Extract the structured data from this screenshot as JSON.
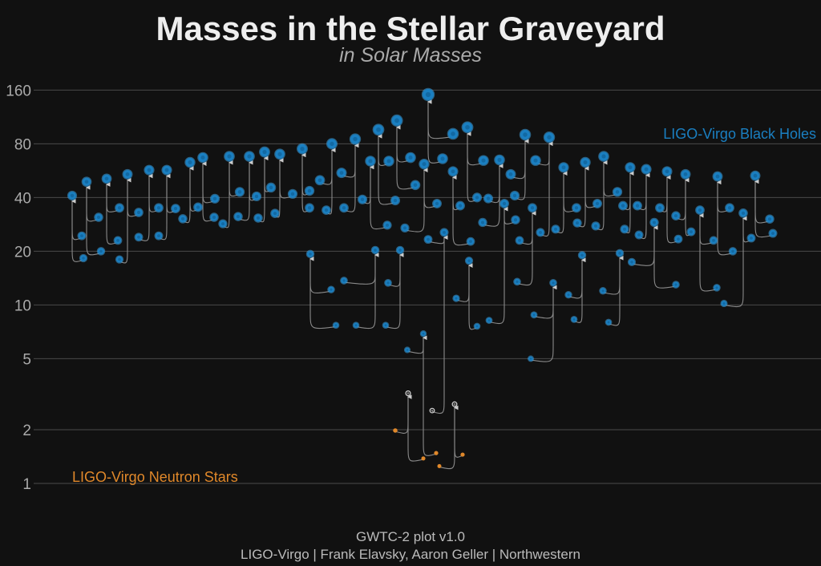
{
  "chart_data": {
    "type": "scatter",
    "title": "Masses in the Stellar Graveyard",
    "subtitle": "in Solar Masses",
    "y_scale": "log",
    "ylim": [
      0.85,
      180
    ],
    "y_ticks": [
      1,
      2,
      5,
      10,
      20,
      40,
      80,
      160
    ],
    "grid": true,
    "legend": [
      {
        "label": "LIGO-Virgo Black Holes",
        "color": "#1a7fc1",
        "placement": "top-right"
      },
      {
        "label": "LIGO-Virgo Neutron Stars",
        "color": "#e0882a",
        "placement": "bottom-left"
      }
    ],
    "colors": {
      "bh": "#1a7fc1",
      "bh_glow": "#3fa3e0",
      "ns": "#e0882a",
      "mg": "#d8d8d8",
      "link": "#8a8a8a",
      "background": "#111111"
    },
    "events": [
      {
        "final": 41,
        "m1": 24.4,
        "m2": 18.3
      },
      {
        "final": 49,
        "m1": 31,
        "m2": 20
      },
      {
        "final": 51,
        "m1": 23,
        "m2": 35
      },
      {
        "final": 54,
        "m1": 18,
        "m2": 33
      },
      {
        "final": 57,
        "m1": 24,
        "m2": 35
      },
      {
        "final": 57,
        "m1": 24.4,
        "m2": 34.7
      },
      {
        "final": 63,
        "m1": 30.4,
        "m2": 35.3
      },
      {
        "final": 67,
        "m1": 39.4,
        "m2": 31
      },
      {
        "final": 68,
        "m1": 28.5,
        "m2": 43
      },
      {
        "final": 68,
        "m1": 31.3,
        "m2": 40.6
      },
      {
        "final": 72,
        "m1": 30.7,
        "m2": 45.5
      },
      {
        "final": 70,
        "m1": 32.6,
        "m2": 41.9
      },
      {
        "final": 75,
        "m1": 43.6,
        "m2": 35
      },
      {
        "final": 19.3,
        "m1": 12.2,
        "m2": 7.7
      },
      {
        "final": 80,
        "m1": 50,
        "m2": 34
      },
      {
        "final": 85,
        "m1": 55,
        "m2": 35
      },
      {
        "final": 64,
        "m1": 39,
        "m2": 28
      },
      {
        "final": 20.3,
        "m1": 13.7,
        "m2": 7.7
      },
      {
        "final": 96,
        "m1": 64,
        "m2": 38.5
      },
      {
        "final": 108,
        "m1": 67,
        "m2": 47
      },
      {
        "final": 20.3,
        "m1": 13.3,
        "m2": 7.7
      },
      {
        "final": 3.2,
        "m1": 1.98,
        "m2": 1.38,
        "final_type": "mg",
        "m1_type": "ns",
        "m2_type": "ns"
      },
      {
        "final": 6.9,
        "m1": 5.6,
        "m2": 1.48,
        "m2_type": "ns"
      },
      {
        "final": 61.6,
        "m1": 27,
        "m2": 37
      },
      {
        "final": 151,
        "m1": 66,
        "m2": 91
      },
      {
        "final": 25.5,
        "m1": 23.3,
        "m2": 2.56,
        "m2_type": "mg"
      },
      {
        "final": 56,
        "m1": 36,
        "m2": 22.7
      },
      {
        "final": 2.78,
        "m1": 1.25,
        "m2": 1.45,
        "final_type": "mg",
        "m1_type": "ns",
        "m2_type": "ns"
      },
      {
        "final": 99,
        "m1": 40,
        "m2": 64.5
      },
      {
        "final": 17.7,
        "m1": 10.9,
        "m2": 7.6
      },
      {
        "final": 65,
        "m1": 39.5,
        "m2": 29
      },
      {
        "final": 37,
        "m1": 8.2,
        "m2": 30
      },
      {
        "final": 90,
        "m1": 54,
        "m2": 41
      },
      {
        "final": 35,
        "m1": 23,
        "m2": 13.5
      },
      {
        "final": 87,
        "m1": 64.5,
        "m2": 25.5
      },
      {
        "final": 13.3,
        "m1": 8.8,
        "m2": 5
      },
      {
        "final": 59,
        "m1": 35,
        "m2": 26.6
      },
      {
        "final": 19,
        "m1": 11.4,
        "m2": 8.3
      },
      {
        "final": 63,
        "m1": 37,
        "m2": 28.8
      },
      {
        "final": 68,
        "m1": 43,
        "m2": 27.7
      },
      {
        "final": 19.5,
        "m1": 12,
        "m2": 8
      },
      {
        "final": 59,
        "m1": 36,
        "m2": 26.6
      },
      {
        "final": 57.6,
        "m1": 36,
        "m2": 24.7
      },
      {
        "final": 29,
        "m1": 17.4,
        "m2": 13
      },
      {
        "final": 56,
        "m1": 35,
        "m2": 23.4
      },
      {
        "final": 54,
        "m1": 31.6,
        "m2": 25.7
      },
      {
        "final": 34,
        "m1": 23,
        "m2": 12.5
      },
      {
        "final": 52.5,
        "m1": 35,
        "m2": 20
      },
      {
        "final": 32.7,
        "m1": 23.7,
        "m2": 10.2
      },
      {
        "final": 53,
        "m1": 30.3,
        "m2": 25.2
      }
    ]
  },
  "labels": {
    "black_holes": "LIGO-Virgo Black Holes",
    "neutron_stars": "LIGO-Virgo Neutron Stars"
  },
  "footer": {
    "line1": "GWTC-2 plot v1.0",
    "line2": "LIGO-Virgo | Frank Elavsky, Aaron Geller | Northwestern"
  }
}
